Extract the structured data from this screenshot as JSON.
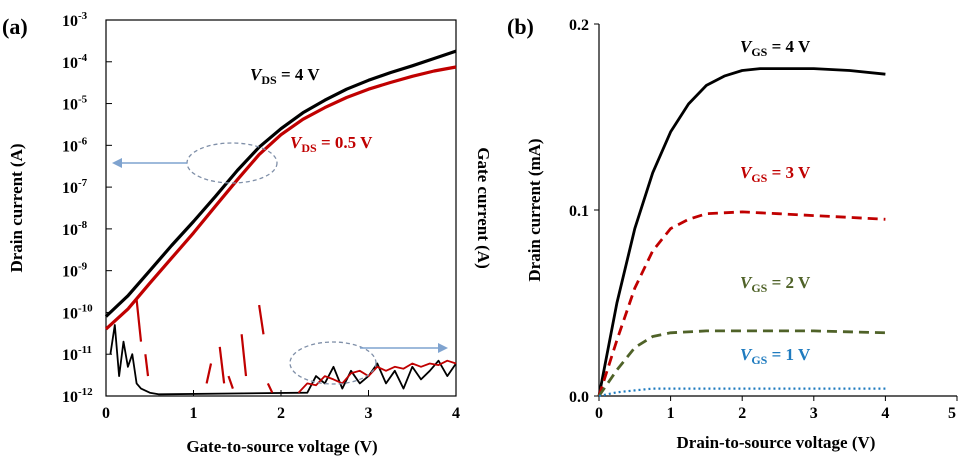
{
  "panels": {
    "a": {
      "label": "(a)",
      "ytick_base": "10",
      "ytick_exponents": [
        "-3",
        "-4",
        "-5",
        "-6",
        "-7",
        "-8",
        "-9",
        "-10",
        "-11",
        "-12"
      ]
    },
    "b": {
      "label": "(b)"
    }
  },
  "chart_data": [
    {
      "type": "line",
      "panel": "a",
      "xlabel": "Gate-to-source voltage (V)",
      "ylabel": "Drain current (A)",
      "ylabel_right": "Gate current (A)",
      "yscale": "log",
      "xlim": [
        0,
        4
      ],
      "ylim": [
        1e-12,
        0.001
      ],
      "xticks": [
        "0",
        "1",
        "2",
        "3",
        "4"
      ],
      "grid": false,
      "series": [
        {
          "name": "V_DS = 4 V",
          "role": "drain current",
          "color": "#000000",
          "x": [
            0,
            0.25,
            0.5,
            0.75,
            1.0,
            1.25,
            1.5,
            1.75,
            2.0,
            2.25,
            2.5,
            2.75,
            3.0,
            3.25,
            3.5,
            3.75,
            4.0
          ],
          "y": [
            8e-11,
            2.5e-10,
            1e-09,
            4e-09,
            1.5e-08,
            6e-08,
            2.5e-07,
            9e-07,
            2.5e-06,
            6e-06,
            1.2e-05,
            2.2e-05,
            3.6e-05,
            5.5e-05,
            8e-05,
            0.00012,
            0.00018
          ]
        },
        {
          "name": "V_DS = 0.5 V",
          "role": "drain current",
          "color": "#c00000",
          "x": [
            0,
            0.25,
            0.5,
            0.75,
            1.0,
            1.25,
            1.5,
            1.75,
            2.0,
            2.25,
            2.5,
            2.75,
            3.0,
            3.25,
            3.5,
            3.75,
            4.0
          ],
          "y": [
            4e-11,
            1.2e-10,
            5e-10,
            2e-09,
            8e-09,
            3.5e-08,
            1.5e-07,
            6e-07,
            1.8e-06,
            4.2e-06,
            8e-06,
            1.4e-05,
            2.2e-05,
            3.2e-05,
            4.5e-05,
            6e-05,
            7.5e-05
          ]
        },
        {
          "name": "gate current (V_DS = 4 V)",
          "role": "gate current",
          "color": "#000000",
          "x": [
            0.05,
            0.1,
            0.15,
            0.2,
            0.25,
            0.3,
            0.35,
            0.4,
            0.5,
            0.6,
            2.3,
            2.4,
            2.5,
            2.6,
            2.7,
            2.8,
            2.9,
            3.0,
            3.1,
            3.2,
            3.3,
            3.4,
            3.5,
            3.6,
            3.7,
            3.8,
            3.9,
            4.0
          ],
          "y": [
            1e-11,
            5e-11,
            3e-12,
            2e-11,
            5e-12,
            1e-11,
            2e-12,
            1.5e-12,
            1.2e-12,
            1.1e-12,
            1.2e-12,
            3e-12,
            2e-12,
            5e-12,
            1.5e-12,
            4e-12,
            2e-12,
            3e-12,
            6e-12,
            2e-12,
            4e-12,
            1.5e-12,
            5e-12,
            2.5e-12,
            4e-12,
            7e-12,
            3e-12,
            6e-12
          ]
        },
        {
          "name": "gate current (V_DS = 0.5 V)",
          "role": "gate current",
          "color": "#c00000",
          "x": [
            2.2,
            2.3,
            2.4,
            2.5,
            2.6,
            2.7,
            2.8,
            2.9,
            3.0,
            3.1,
            3.2,
            3.3,
            3.4,
            3.5,
            3.6,
            3.7,
            3.8,
            3.9,
            4.0
          ],
          "y": [
            1.2e-12,
            2e-12,
            1.8e-12,
            3e-12,
            2.5e-12,
            2e-12,
            3.5e-12,
            4e-12,
            3e-12,
            5e-12,
            4e-12,
            5e-12,
            4.5e-12,
            6e-12,
            5e-12,
            6e-12,
            5.5e-12,
            7e-12,
            6e-12
          ]
        },
        {
          "name": "gate current spikes",
          "role": "gate current",
          "color": "#c00000",
          "segments": [
            [
              0.35,
              2e-10,
              0.4,
              2e-11
            ],
            [
              0.45,
              1e-11,
              0.48,
              3e-12
            ],
            [
              1.15,
              2e-12,
              1.2,
              6e-12
            ],
            [
              1.3,
              1.5e-11,
              1.35,
              2e-12
            ],
            [
              1.4,
              3e-12,
              1.45,
              1.5e-12
            ],
            [
              1.55,
              3e-11,
              1.6,
              3e-12
            ],
            [
              1.75,
              1.5e-10,
              1.8,
              3e-11
            ],
            [
              1.85,
              2e-12,
              1.9,
              1.2e-12
            ]
          ]
        }
      ],
      "annotations": [
        {
          "text": "V_DS = 4 V",
          "color": "#000000",
          "sub": "DS",
          "prefix": "V",
          "suffix": " = 4 V"
        },
        {
          "text": "V_DS = 0.5 V",
          "color": "#c00000",
          "sub": "DS",
          "prefix": "V",
          "suffix": " = 0.5 V"
        }
      ],
      "markers": [
        {
          "kind": "dashed-ellipse",
          "meaning": "drain curves",
          "arrow": "left",
          "arrow_color": "#7fa3cf"
        },
        {
          "kind": "dashed-ellipse",
          "meaning": "gate curves",
          "arrow": "right",
          "arrow_color": "#7fa3cf"
        }
      ]
    },
    {
      "type": "line",
      "panel": "b",
      "xlabel": "Drain-to-source voltage (V)",
      "ylabel": "Drain current (mA)",
      "xlim": [
        0,
        5
      ],
      "ylim": [
        0,
        0.2
      ],
      "xticks": [
        "0",
        "1",
        "2",
        "3",
        "4",
        "5"
      ],
      "yticks": [
        "0.0",
        "0.1",
        "0.2"
      ],
      "grid": false,
      "series": [
        {
          "name": "V_GS = 4 V",
          "color": "#000000",
          "dash": "solid",
          "x": [
            0,
            0.25,
            0.5,
            0.75,
            1.0,
            1.25,
            1.5,
            1.75,
            2.0,
            2.25,
            2.5,
            3.0,
            3.5,
            4.0
          ],
          "y": [
            0,
            0.05,
            0.09,
            0.12,
            0.142,
            0.157,
            0.167,
            0.172,
            0.175,
            0.176,
            0.176,
            0.176,
            0.175,
            0.173
          ]
        },
        {
          "name": "V_GS = 3 V",
          "color": "#c00000",
          "dash": "dashed",
          "x": [
            0,
            0.25,
            0.5,
            0.75,
            1.0,
            1.25,
            1.5,
            2.0,
            2.5,
            3.0,
            3.5,
            4.0
          ],
          "y": [
            0,
            0.03,
            0.058,
            0.078,
            0.09,
            0.095,
            0.098,
            0.099,
            0.098,
            0.097,
            0.096,
            0.095
          ]
        },
        {
          "name": "V_GS = 2 V",
          "color": "#4f6228",
          "dash": "dashed",
          "x": [
            0,
            0.25,
            0.5,
            0.75,
            1.0,
            1.5,
            2.0,
            3.0,
            4.0
          ],
          "y": [
            0,
            0.014,
            0.026,
            0.032,
            0.034,
            0.035,
            0.035,
            0.035,
            0.034
          ]
        },
        {
          "name": "V_GS = 1 V",
          "color": "#1f7bbf",
          "dash": "dotted",
          "x": [
            0,
            0.25,
            0.5,
            0.75,
            1.0,
            2.0,
            3.0,
            4.0
          ],
          "y": [
            0,
            0.002,
            0.003,
            0.004,
            0.004,
            0.004,
            0.004,
            0.004
          ]
        }
      ],
      "annotations": [
        {
          "text": "V_GS = 4 V",
          "color": "#000000",
          "prefix": "V",
          "sub": "GS",
          "suffix": " = 4 V"
        },
        {
          "text": "V_GS = 3 V",
          "color": "#c00000",
          "prefix": "V",
          "sub": "GS",
          "suffix": " = 3 V"
        },
        {
          "text": "V_GS = 2 V",
          "color": "#4f6228",
          "prefix": "V",
          "sub": "GS",
          "suffix": " = 2 V"
        },
        {
          "text": "V_GS = 1 V",
          "color": "#1f7bbf",
          "prefix": "V",
          "sub": "GS",
          "suffix": " = 1 V"
        }
      ]
    }
  ]
}
